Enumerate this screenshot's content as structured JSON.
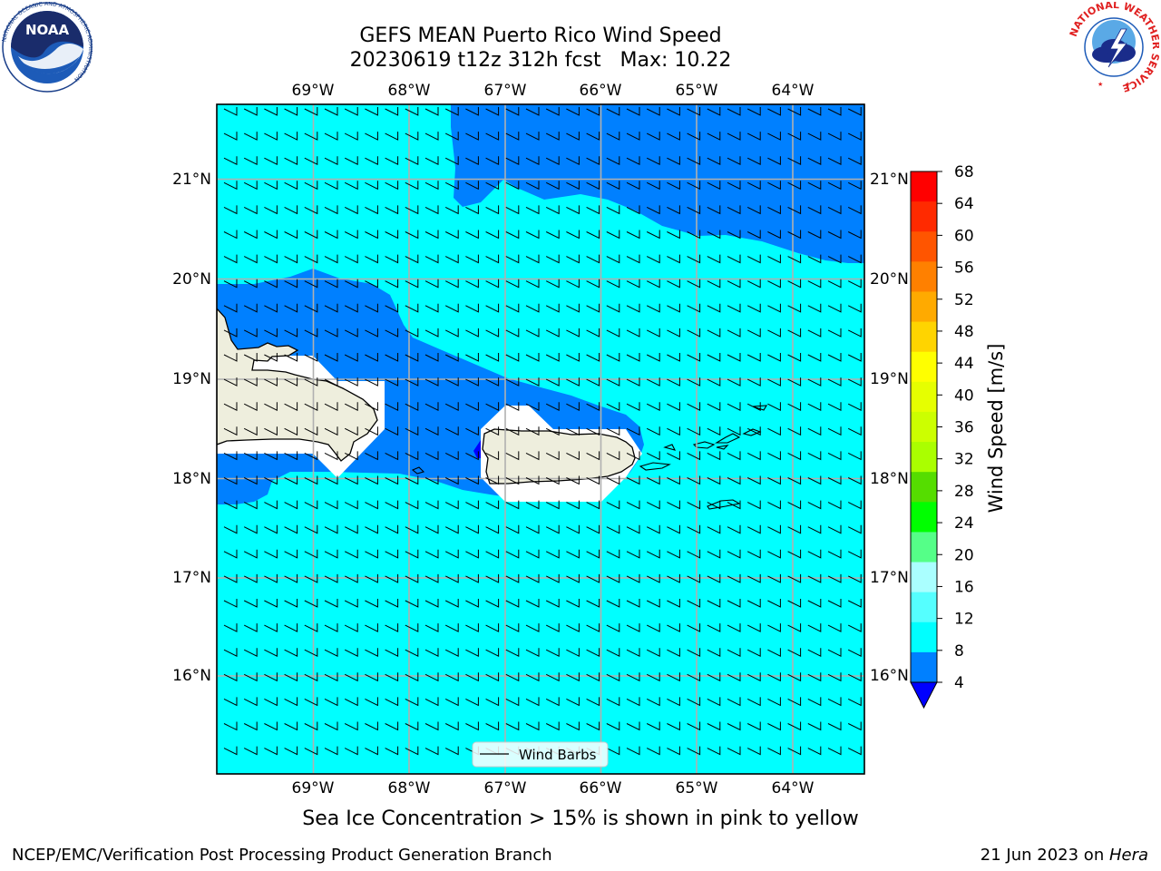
{
  "title": {
    "line1": "GEFS MEAN Puerto Rico Wind Speed",
    "line2": "20230619 t12z 312h fcst   Max: 10.22"
  },
  "map": {
    "lon_ticks": [
      "69°W",
      "68°W",
      "67°W",
      "66°W",
      "65°W",
      "64°W"
    ],
    "lat_ticks": [
      "21°N",
      "20°N",
      "19°N",
      "18°N",
      "17°N",
      "16°N"
    ],
    "lon_range": [
      -70.0,
      -63.25
    ],
    "lat_range": [
      15.0,
      21.75
    ],
    "legend_label": "Wind Barbs",
    "colors": {
      "ocean_light": "#00ffff",
      "ocean_mid": "#0080ff",
      "ocean_low": "#0000ff",
      "land": "#eeeedd",
      "grid": "#b0b0b0"
    }
  },
  "colorbar": {
    "label": "Wind Speed [m/s]",
    "ticks": [
      "68",
      "64",
      "60",
      "56",
      "52",
      "48",
      "44",
      "40",
      "36",
      "32",
      "28",
      "24",
      "20",
      "16",
      "12",
      "8",
      "4"
    ],
    "colors": [
      "#ff0000",
      "#ff2a00",
      "#ff5500",
      "#ff8000",
      "#ffaa00",
      "#ffd400",
      "#ffff00",
      "#e6ff00",
      "#ccff00",
      "#aaff00",
      "#55dd00",
      "#00ff00",
      "#55ff88",
      "#aaffff",
      "#55ffff",
      "#00ffff",
      "#0080ff"
    ],
    "extend_color": "#0000ff"
  },
  "caption": "Sea Ice Concentration > 15% is shown in pink to yellow",
  "footer": {
    "left": "NCEP/EMC/Verification Post Processing Product Generation Branch",
    "date": "21 Jun 2023 on ",
    "host": "Hera"
  },
  "logos": {
    "noaa_text": "NOAA",
    "noaa_ring": "NATIONAL OCEANIC AND ATMOSPHERIC ADMINISTRATION",
    "noaa_ring_bottom": "U.S. DEPARTMENT OF COMMERCE",
    "nws_ring": "NATIONAL WEATHER SERVICE"
  }
}
